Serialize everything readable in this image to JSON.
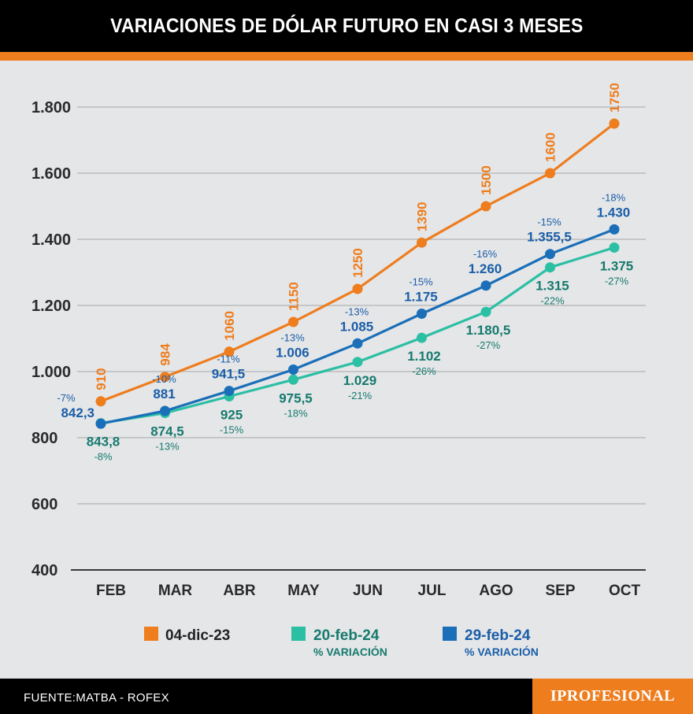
{
  "header": {
    "title": "VARIACIONES DE DÓLAR FUTURO EN CASI 3 MESES"
  },
  "footer": {
    "source": "FUENTE:MATBA - ROFEX",
    "brand": "IPROFESIONAL"
  },
  "colors": {
    "orange": "#ee7d1e",
    "teal": "#2bbfa4",
    "blue": "#1a6fb8",
    "teal_text": "#167a6e",
    "blue_text": "#1a5ea8"
  },
  "chart_data": {
    "type": "line",
    "title": "VARIACIONES DE DÓLAR FUTURO EN CASI 3 MESES",
    "categories": [
      "FEB",
      "MAR",
      "ABR",
      "MAY",
      "JUN",
      "JUL",
      "AGO",
      "SEP",
      "OCT"
    ],
    "ylim": [
      400,
      1800
    ],
    "yticks": [
      400,
      600,
      800,
      1000,
      1200,
      1400,
      1600,
      1800
    ],
    "ytick_labels": [
      "400",
      "600",
      "800",
      "1.000",
      "1.200",
      "1.400",
      "1.600",
      "1.800"
    ],
    "grid": true,
    "legend_position": "bottom",
    "series": [
      {
        "name": "04-dic-23",
        "sublabel": "",
        "color": "#ee7d1e",
        "values": [
          910,
          984,
          1060,
          1150,
          1250,
          1390,
          1500,
          1600,
          1750
        ],
        "labels": [
          "910",
          "984",
          "1060",
          "1150",
          "1250",
          "1390",
          "1500",
          "1600",
          "1750"
        ],
        "pct": []
      },
      {
        "name": "20-feb-24",
        "sublabel": "% VARIACIÓN",
        "color": "#2bbfa4",
        "values": [
          843.8,
          874.5,
          925,
          975.5,
          1029,
          1102,
          1180.5,
          1315,
          1375
        ],
        "labels": [
          "843,8",
          "874,5",
          "925",
          "975,5",
          "1.029",
          "1.102",
          "1.180,5",
          "1.315",
          "1.375"
        ],
        "pct": [
          "-8%",
          "-13%",
          "-15%",
          "-18%",
          "-21%",
          "-26%",
          "-27%",
          "-22%",
          "-27%"
        ]
      },
      {
        "name": "29-feb-24",
        "sublabel": "% VARIACIÓN",
        "color": "#1a6fb8",
        "values": [
          842.3,
          881,
          941.5,
          1006,
          1085,
          1175,
          1260,
          1355.5,
          1430
        ],
        "labels": [
          "842,3",
          "881",
          "941,5",
          "1.006",
          "1.085",
          "1.175",
          "1.260",
          "1.355,5",
          "1.430"
        ],
        "pct": [
          "-7%",
          "-10%",
          "-11%",
          "-13%",
          "-13%",
          "-15%",
          "-16%",
          "-15%",
          "-18%"
        ]
      }
    ]
  }
}
